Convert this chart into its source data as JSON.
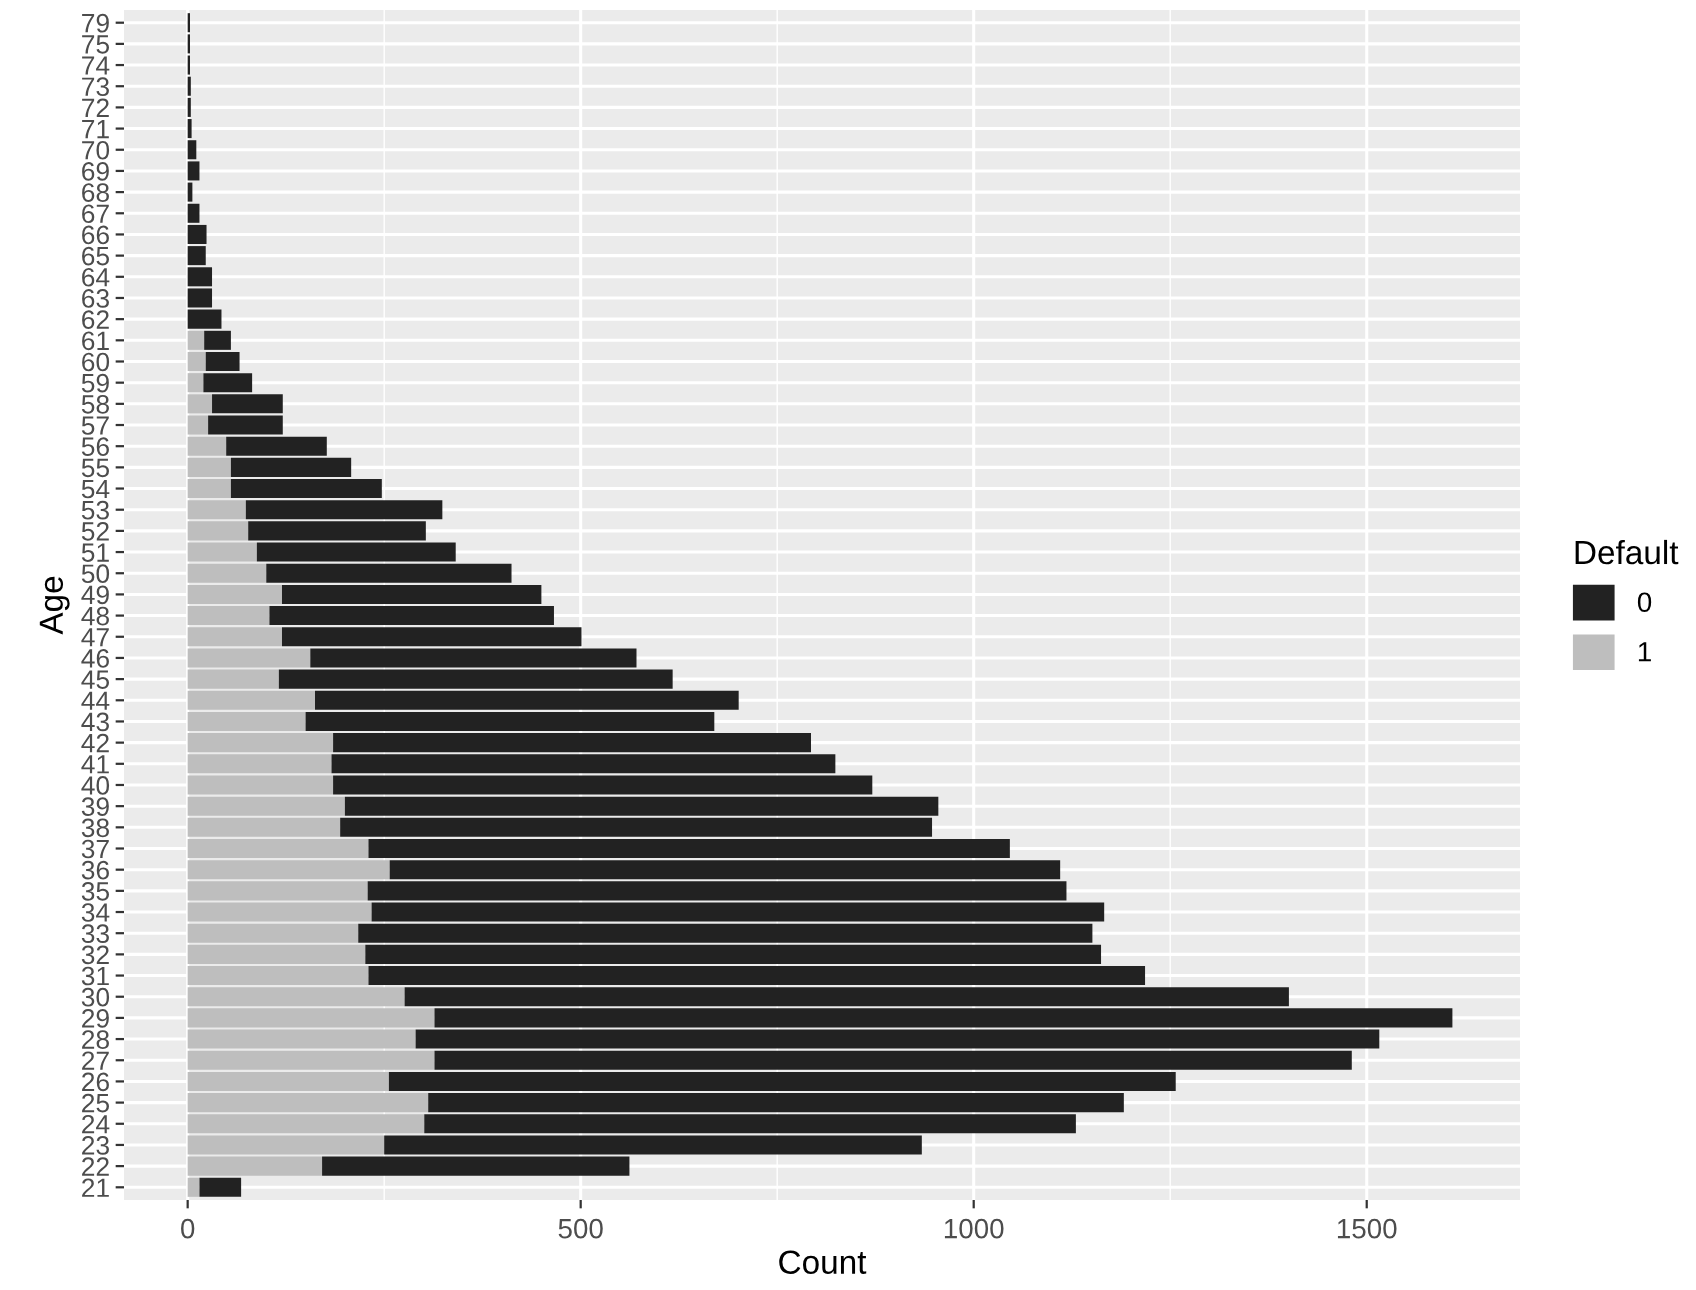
{
  "chart_data": {
    "type": "bar",
    "orientation": "horizontal",
    "stacked": true,
    "xlabel": "Count",
    "ylabel": "Age",
    "legend_title": "Default",
    "legend": "right",
    "grid": true,
    "categories": [
      "79",
      "75",
      "74",
      "73",
      "72",
      "71",
      "70",
      "69",
      "68",
      "67",
      "66",
      "65",
      "64",
      "63",
      "62",
      "61",
      "60",
      "59",
      "58",
      "57",
      "56",
      "55",
      "54",
      "53",
      "52",
      "51",
      "50",
      "49",
      "48",
      "47",
      "46",
      "45",
      "44",
      "43",
      "42",
      "41",
      "40",
      "39",
      "38",
      "37",
      "36",
      "35",
      "34",
      "33",
      "32",
      "31",
      "30",
      "29",
      "28",
      "27",
      "26",
      "25",
      "24",
      "23",
      "22",
      "21"
    ],
    "xlim": [
      -81,
      1695
    ],
    "xticks": [
      0,
      500,
      1000,
      1500
    ],
    "series": [
      {
        "name": "1",
        "color": "#bebebe",
        "values": [
          0,
          0,
          0,
          0,
          0,
          0,
          0,
          0,
          0,
          0,
          0,
          0,
          0,
          0,
          0,
          21,
          23,
          20,
          31,
          26,
          49,
          55,
          55,
          74,
          77,
          88,
          100,
          120,
          104,
          120,
          156,
          116,
          162,
          150,
          185,
          183,
          185,
          200,
          194,
          230,
          257,
          229,
          234,
          217,
          226,
          230,
          276,
          314,
          290,
          314,
          256,
          306,
          301,
          250,
          171,
          15
        ]
      },
      {
        "name": "0",
        "color": "#222222",
        "values": [
          3,
          3,
          3,
          4,
          4,
          5,
          11,
          15,
          6,
          15,
          24,
          23,
          31,
          31,
          43,
          34,
          43,
          62,
          90,
          95,
          128,
          153,
          192,
          250,
          226,
          253,
          312,
          330,
          362,
          381,
          415,
          501,
          539,
          520,
          608,
          641,
          686,
          755,
          753,
          816,
          853,
          889,
          932,
          934,
          936,
          988,
          1125,
          1295,
          1226,
          1167,
          1001,
          885,
          829,
          684,
          391,
          53
        ]
      }
    ]
  }
}
